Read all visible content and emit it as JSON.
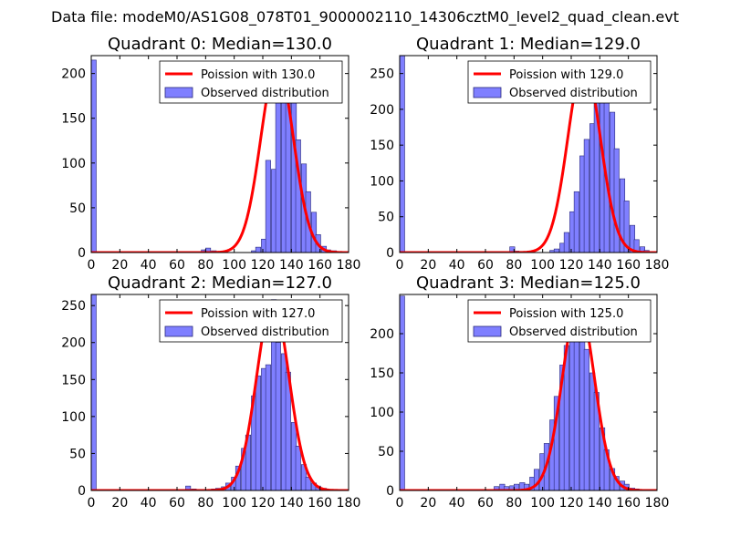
{
  "figure": {
    "suptitle": "Data file: modeM0/AS1G08_078T01_9000002110_14306cztM0_level2_quad_clean.evt"
  },
  "style": {
    "bar_fill": "#7f7fff",
    "bar_edge": "#2a2a7a",
    "fit_line": "#ff0000",
    "fit_halo": "#ff8080"
  },
  "chart_data": [
    {
      "type": "bar",
      "title": "Quadrant 0: Median=130.0",
      "xlim": [
        0,
        180
      ],
      "ylim": [
        0,
        220
      ],
      "xticks": [
        0,
        20,
        40,
        60,
        80,
        100,
        120,
        140,
        160,
        180
      ],
      "yticks": [
        0,
        50,
        100,
        150,
        200
      ],
      "legend": {
        "position": "top-right",
        "entries": [
          "Poission with 130.0",
          "Observed distribution"
        ]
      },
      "bin_width": 3.5,
      "bins": [
        [
          0,
          215
        ],
        [
          77,
          3
        ],
        [
          80,
          5
        ],
        [
          84,
          2
        ],
        [
          87,
          1
        ],
        [
          112,
          2
        ],
        [
          115,
          6
        ],
        [
          119,
          15
        ],
        [
          122,
          103
        ],
        [
          126,
          93
        ],
        [
          129,
          195
        ],
        [
          133,
          194
        ],
        [
          136,
          193
        ],
        [
          140,
          200
        ],
        [
          143,
          126
        ],
        [
          147,
          99
        ],
        [
          150,
          68
        ],
        [
          154,
          45
        ],
        [
          157,
          20
        ],
        [
          161,
          7
        ],
        [
          164,
          3
        ],
        [
          168,
          2
        ],
        [
          171,
          1
        ]
      ],
      "poisson": {
        "mean": 130.0,
        "peak": 211
      }
    },
    {
      "type": "bar",
      "title": "Quadrant 1: Median=129.0",
      "xlim": [
        0,
        180
      ],
      "ylim": [
        0,
        275
      ],
      "xticks": [
        0,
        20,
        40,
        60,
        80,
        100,
        120,
        140,
        160,
        180
      ],
      "yticks": [
        0,
        50,
        100,
        150,
        200,
        250
      ],
      "legend": {
        "position": "top-right",
        "entries": [
          "Poission with 129.0",
          "Observed distribution"
        ]
      },
      "bin_width": 3.5,
      "bins": [
        [
          0,
          275
        ],
        [
          77,
          8
        ],
        [
          80,
          2
        ],
        [
          105,
          3
        ],
        [
          108,
          5
        ],
        [
          112,
          13
        ],
        [
          115,
          28
        ],
        [
          119,
          57
        ],
        [
          122,
          85
        ],
        [
          126,
          135
        ],
        [
          129,
          158
        ],
        [
          133,
          180
        ],
        [
          136,
          232
        ],
        [
          140,
          245
        ],
        [
          143,
          240
        ],
        [
          147,
          196
        ],
        [
          150,
          145
        ],
        [
          154,
          103
        ],
        [
          157,
          72
        ],
        [
          161,
          38
        ],
        [
          164,
          18
        ],
        [
          168,
          8
        ],
        [
          171,
          3
        ]
      ],
      "poisson": {
        "mean": 129.0,
        "peak": 265
      }
    },
    {
      "type": "bar",
      "title": "Quadrant 2: Median=127.0",
      "xlim": [
        0,
        180
      ],
      "ylim": [
        0,
        265
      ],
      "xticks": [
        0,
        20,
        40,
        60,
        80,
        100,
        120,
        140,
        160,
        180
      ],
      "yticks": [
        0,
        50,
        100,
        150,
        200,
        250
      ],
      "legend": {
        "position": "top-right",
        "entries": [
          "Poission with 127.0",
          "Observed distribution"
        ]
      },
      "bin_width": 3.5,
      "bins": [
        [
          0,
          265
        ],
        [
          66,
          6
        ],
        [
          70,
          2
        ],
        [
          84,
          2
        ],
        [
          87,
          3
        ],
        [
          91,
          5
        ],
        [
          94,
          10
        ],
        [
          98,
          18
        ],
        [
          101,
          33
        ],
        [
          105,
          57
        ],
        [
          108,
          75
        ],
        [
          112,
          128
        ],
        [
          115,
          155
        ],
        [
          119,
          165
        ],
        [
          122,
          170
        ],
        [
          126,
          258
        ],
        [
          129,
          200
        ],
        [
          133,
          185
        ],
        [
          136,
          160
        ],
        [
          140,
          92
        ],
        [
          143,
          60
        ],
        [
          147,
          35
        ],
        [
          150,
          18
        ],
        [
          154,
          10
        ],
        [
          157,
          6
        ],
        [
          161,
          3
        ],
        [
          164,
          1
        ]
      ],
      "poisson": {
        "mean": 127.0,
        "peak": 255
      }
    },
    {
      "type": "bar",
      "title": "Quadrant 3: Median=125.0",
      "xlim": [
        0,
        180
      ],
      "ylim": [
        0,
        250
      ],
      "xticks": [
        0,
        20,
        40,
        60,
        80,
        100,
        120,
        140,
        160,
        180
      ],
      "yticks": [
        0,
        50,
        100,
        150,
        200
      ],
      "legend": {
        "position": "top-right",
        "entries": [
          "Poission with 125.0",
          "Observed distribution"
        ]
      },
      "bin_width": 3.5,
      "bins": [
        [
          0,
          248
        ],
        [
          66,
          5
        ],
        [
          70,
          8
        ],
        [
          73,
          5
        ],
        [
          77,
          6
        ],
        [
          80,
          8
        ],
        [
          84,
          10
        ],
        [
          87,
          8
        ],
        [
          91,
          17
        ],
        [
          94,
          27
        ],
        [
          98,
          47
        ],
        [
          101,
          60
        ],
        [
          105,
          90
        ],
        [
          108,
          120
        ],
        [
          112,
          160
        ],
        [
          115,
          185
        ],
        [
          119,
          215
        ],
        [
          122,
          232
        ],
        [
          126,
          240
        ],
        [
          129,
          180
        ],
        [
          133,
          150
        ],
        [
          136,
          125
        ],
        [
          140,
          80
        ],
        [
          143,
          52
        ],
        [
          147,
          28
        ],
        [
          150,
          18
        ],
        [
          154,
          12
        ],
        [
          157,
          8
        ],
        [
          161,
          3
        ],
        [
          164,
          2
        ]
      ],
      "poisson": {
        "mean": 125.0,
        "peak": 238
      }
    }
  ]
}
